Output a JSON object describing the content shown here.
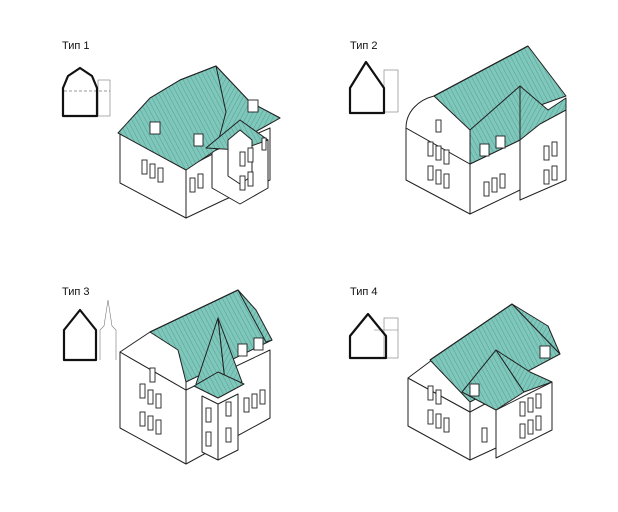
{
  "panels": [
    {
      "id": "type1",
      "label": "Тип 1"
    },
    {
      "id": "type2",
      "label": "Тип 2"
    },
    {
      "id": "type3",
      "label": "Тип 3"
    },
    {
      "id": "type4",
      "label": "Тип 4"
    }
  ],
  "colors": {
    "roof": "#7fc7bb",
    "roof_dark": "#5aa79b",
    "line": "#222222",
    "wall": "#ffffff"
  }
}
